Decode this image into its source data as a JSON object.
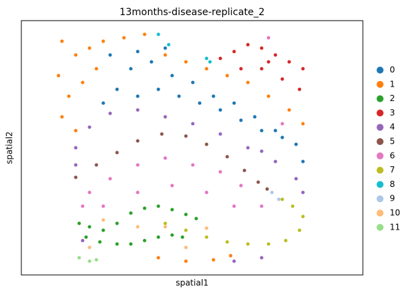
{
  "chart_data": {
    "type": "scatter",
    "title": "13months-disease-replicate_2",
    "x_label": "spatial1",
    "y_label": "spatial2",
    "xlim": [
      0,
      496
    ],
    "ylim": [
      370,
      0
    ],
    "series": [
      {
        "name": "0",
        "color": "#1f77b4",
        "x": [
          129,
          159,
          189,
          219,
          249,
          279,
          309,
          339,
          369,
          399,
          409,
          139,
          169,
          199,
          229,
          259,
          289,
          319,
          349,
          379,
          119,
          169,
          209
        ],
        "y": [
          50,
          70,
          60,
          80,
          90,
          110,
          120,
          140,
          160,
          180,
          205,
          100,
          110,
          100,
          110,
          120,
          130,
          145,
          160,
          170,
          120,
          45,
          40
        ]
      },
      {
        "name": "1",
        "color": "#ff7f0e",
        "x": [
          59,
          79,
          99,
          54,
          69,
          89,
          59,
          79,
          109,
          149,
          179,
          209,
          239,
          269,
          299,
          329,
          359,
          389,
          409,
          199,
          239,
          279,
          304,
          119
        ],
        "y": [
          30,
          50,
          40,
          80,
          110,
          90,
          140,
          160,
          70,
          25,
          20,
          50,
          60,
          70,
          80,
          90,
          110,
          130,
          150,
          345,
          350,
          348,
          342,
          30
        ]
      },
      {
        "name": "2",
        "color": "#2ca02c",
        "x": [
          84,
          99,
          119,
          139,
          159,
          179,
          199,
          219,
          239,
          254,
          94,
          114,
          139,
          159,
          179,
          199,
          219,
          234
        ],
        "y": [
          295,
          300,
          305,
          295,
          280,
          273,
          270,
          275,
          282,
          288,
          315,
          322,
          325,
          325,
          320,
          315,
          312,
          315
        ]
      },
      {
        "name": "3",
        "color": "#d62728",
        "x": [
          289,
          309,
          329,
          349,
          369,
          389,
          409,
          319,
          349,
          379,
          404,
          359
        ],
        "y": [
          55,
          45,
          35,
          40,
          50,
          60,
          70,
          70,
          70,
          85,
          100,
          60
        ]
      },
      {
        "name": "4",
        "color": "#9467bd",
        "x": [
          79,
          99,
          129,
          169,
          209,
          249,
          289,
          329,
          369,
          399,
          409,
          349,
          79,
          309,
          349,
          89
        ],
        "y": [
          185,
          155,
          135,
          130,
          140,
          150,
          165,
          185,
          205,
          230,
          250,
          190,
          210,
          350,
          345,
          320
        ]
      },
      {
        "name": "5",
        "color": "#8c564b",
        "x": [
          79,
          109,
          139,
          169,
          204,
          239,
          269,
          299,
          324,
          344,
          357
        ],
        "y": [
          228,
          210,
          192,
          175,
          165,
          168,
          180,
          198,
          218,
          235,
          245
        ]
      },
      {
        "name": "6",
        "color": "#e377c2",
        "x": [
          99,
          129,
          169,
          209,
          249,
          289,
          319,
          349,
          119,
          169,
          219,
          269,
          309,
          89,
          379,
          359
        ],
        "y": [
          250,
          230,
          210,
          200,
          210,
          220,
          240,
          270,
          270,
          250,
          240,
          250,
          270,
          270,
          150,
          25
        ]
      },
      {
        "name": "7",
        "color": "#bcbd22",
        "x": [
          209,
          239,
          269,
          299,
          329,
          359,
          384,
          404,
          409,
          394,
          379
        ],
        "y": [
          295,
          305,
          315,
          322,
          325,
          325,
          320,
          305,
          285,
          270,
          260
        ]
      },
      {
        "name": "8",
        "color": "#17becf",
        "x": [
          199,
          214,
          269,
          274
        ],
        "y": [
          20,
          35,
          55,
          60
        ]
      },
      {
        "name": "9",
        "color": "#aec7e8",
        "x": [
          364,
          374
        ],
        "y": [
          250,
          260
        ]
      },
      {
        "name": "10",
        "color": "#ffbb78",
        "x": [
          119,
          169,
          209,
          239,
          99,
          269
        ],
        "y": [
          290,
          300,
          300,
          330,
          330,
          302
        ]
      },
      {
        "name": "11",
        "color": "#98df8a",
        "x": [
          84,
          99,
          109
        ],
        "y": [
          345,
          350,
          348
        ]
      }
    ]
  }
}
